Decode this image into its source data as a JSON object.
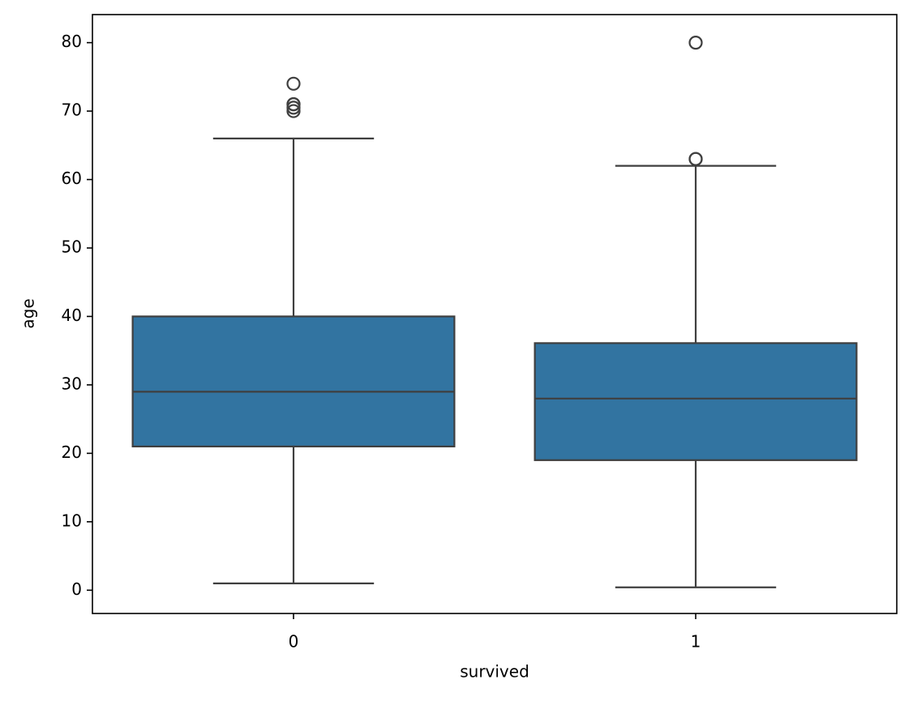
{
  "chart_data": {
    "type": "box",
    "x_label": "survived",
    "y_label": "age",
    "categories": [
      "0",
      "1"
    ],
    "color": "#3274a1",
    "line_color": "#3f3f3f",
    "boxes": [
      {
        "min": 1,
        "q1": 21,
        "median": 29,
        "q3": 40,
        "max": 66,
        "outliers": [
          70,
          70.5,
          71,
          71,
          74
        ]
      },
      {
        "min": 0.42,
        "q1": 19,
        "median": 28,
        "q3": 36.1,
        "max": 62,
        "outliers": [
          63,
          63,
          80
        ]
      }
    ],
    "ylim": [
      -3.4,
      84.1
    ],
    "yticks": [
      0,
      10,
      20,
      30,
      40,
      50,
      60,
      70,
      80
    ]
  }
}
